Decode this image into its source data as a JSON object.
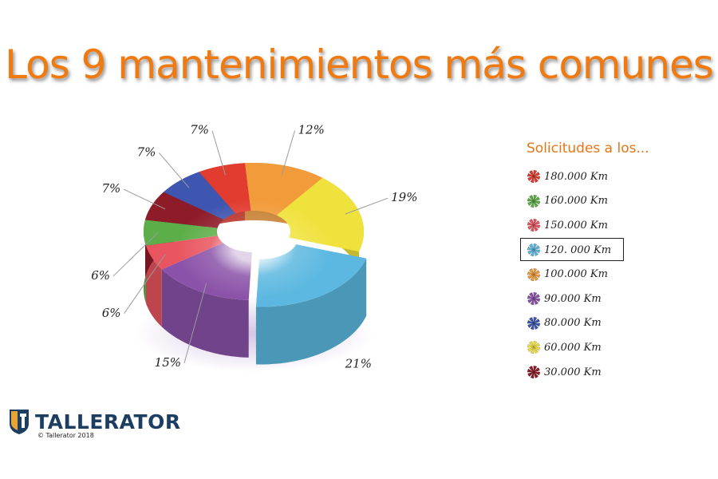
{
  "title": "Los 9 mantenimientos más comunes",
  "legend_title": "Solicitudes a los...",
  "selected_legend": "120. 000 Km",
  "brand": {
    "name": "TALLERATOR",
    "copyright": "© Tallerator 2018"
  },
  "colors": {
    "title": "#f07a10",
    "legend_title": "#e87414",
    "logo": "#1d3e63",
    "logo_accent": "#e8a432"
  },
  "chart_data": {
    "type": "pie",
    "style": "3d-donut",
    "title": "Los 9 mantenimientos más comunes",
    "legend_title": "Solicitudes a los...",
    "legend_position": "right",
    "slices": [
      {
        "label": "100.000 Km",
        "value": 12,
        "display": "12%",
        "color": "#f29b3a"
      },
      {
        "label": "60.000 Km",
        "value": 19,
        "display": "19%",
        "color": "#f0e23c"
      },
      {
        "label": "120. 000 Km",
        "value": 21,
        "display": "21%",
        "color": "#5cb8e0",
        "exploded": true
      },
      {
        "label": "90.000 Km",
        "value": 15,
        "display": "15%",
        "color": "#8a52a8"
      },
      {
        "label": "150.000 Km",
        "value": 6,
        "display": "6%",
        "color": "#e8545f"
      },
      {
        "label": "160.000 Km",
        "value": 6,
        "display": "6%",
        "color": "#5cae48"
      },
      {
        "label": "30.000 Km",
        "value": 7,
        "display": "7%",
        "color": "#8e1c28"
      },
      {
        "label": "80.000 Km",
        "value": 7,
        "display": "7%",
        "color": "#3e56b0"
      },
      {
        "label": "180.000 Km",
        "value": 7,
        "display": "7%",
        "color": "#e23c30"
      }
    ],
    "legend": [
      {
        "label": "180.000 Km",
        "color": "#e23c30"
      },
      {
        "label": "160.000 Km",
        "color": "#5cae48"
      },
      {
        "label": "150.000 Km",
        "color": "#e8545f"
      },
      {
        "label": "120. 000 Km",
        "color": "#5cb8e0"
      },
      {
        "label": "100.000 Km",
        "color": "#f29b3a"
      },
      {
        "label": "90.000 Km",
        "color": "#8a52a8"
      },
      {
        "label": "80.000 Km",
        "color": "#3e56b0"
      },
      {
        "label": "60.000 Km",
        "color": "#f0e23c"
      },
      {
        "label": "30.000 Km",
        "color": "#8e1c28"
      }
    ]
  }
}
